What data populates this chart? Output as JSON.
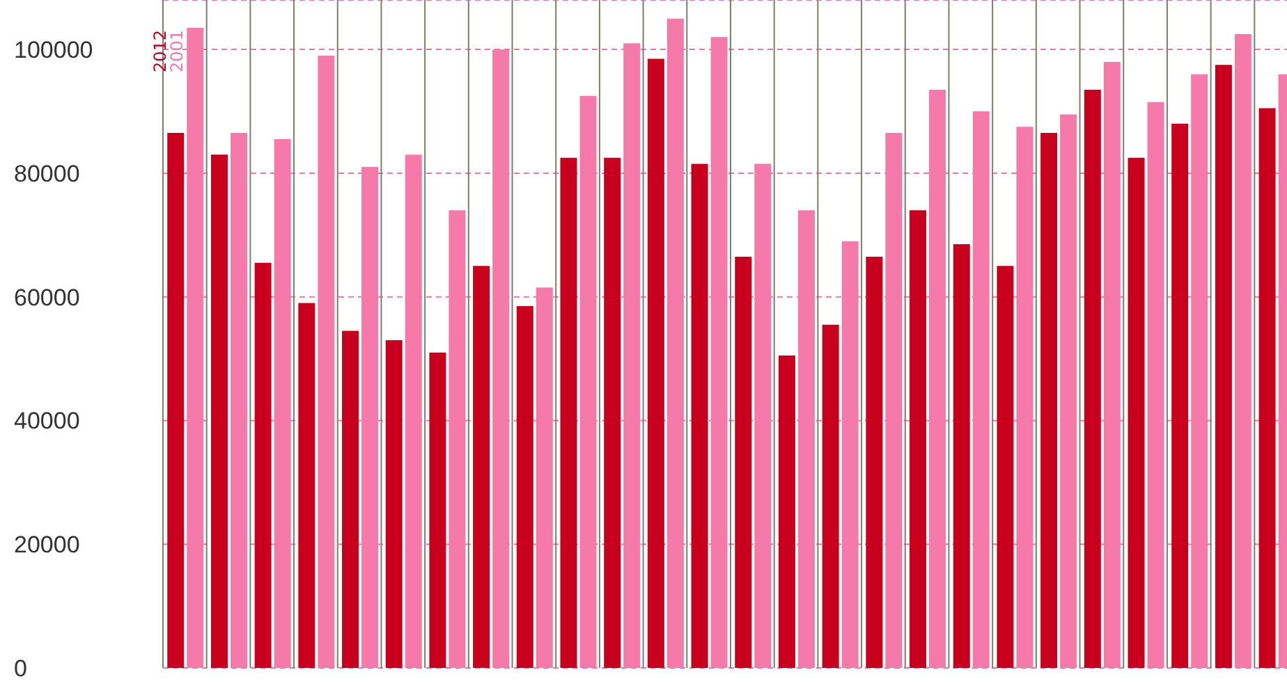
{
  "chart_data": {
    "type": "bar",
    "categories": [
      null,
      null,
      null,
      null,
      null,
      null,
      null,
      null,
      null,
      null,
      null,
      null,
      null,
      null,
      null,
      null,
      null,
      null,
      null,
      null,
      null,
      null,
      null,
      null,
      null,
      null
    ],
    "series": [
      {
        "name": "2012",
        "color": "#c8001e",
        "values": [
          86500,
          83000,
          65500,
          59000,
          54500,
          53000,
          51000,
          65000,
          58500,
          82500,
          82500,
          98500,
          81500,
          66500,
          50500,
          55500,
          66500,
          74000,
          68500,
          65000,
          86500,
          93500,
          82500,
          88000,
          97500,
          90500
        ]
      },
      {
        "name": "2001",
        "color": "#f57aaa",
        "values": [
          103500,
          86500,
          85500,
          99000,
          81000,
          83000,
          74000,
          100000,
          61500,
          92500,
          101000,
          105000,
          102000,
          81500,
          74000,
          69000,
          86500,
          93500,
          90000,
          87500,
          89500,
          98000,
          91500,
          96000,
          102500,
          96000
        ]
      }
    ],
    "ylim": [
      0,
      108000
    ],
    "yticks": [
      0,
      20000,
      40000,
      60000,
      80000,
      100000
    ],
    "grid": true,
    "legend": false,
    "tick_labels": "y"
  }
}
